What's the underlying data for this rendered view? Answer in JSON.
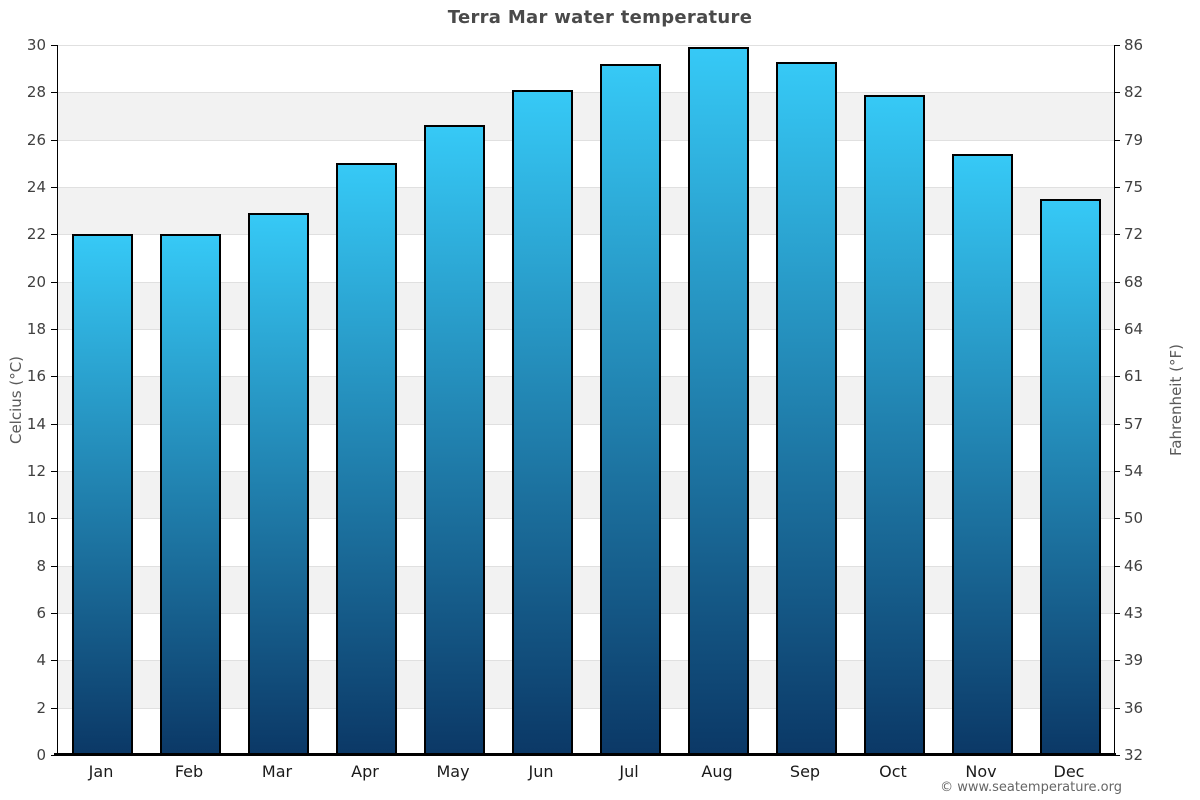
{
  "title": "Terra Mar water temperature",
  "footer": {
    "copyright": "© www.seatemperature.org"
  },
  "axes": {
    "left_label": "Celcius (°C)",
    "right_label": "Fahrenheit (°F)",
    "celsius_ticks": [
      0,
      2,
      4,
      6,
      8,
      10,
      12,
      14,
      16,
      18,
      20,
      22,
      24,
      26,
      28,
      30
    ],
    "fahrenheit_ticks": [
      32,
      36,
      39,
      43,
      46,
      50,
      54,
      57,
      61,
      64,
      68,
      72,
      75,
      79,
      82,
      86
    ]
  },
  "chart_data": {
    "type": "bar",
    "title": "Terra Mar water temperature",
    "categories": [
      "Jan",
      "Feb",
      "Mar",
      "Apr",
      "May",
      "Jun",
      "Jul",
      "Aug",
      "Sep",
      "Oct",
      "Nov",
      "Dec"
    ],
    "values": [
      22.0,
      22.0,
      22.9,
      25.0,
      26.6,
      28.1,
      29.2,
      29.9,
      29.3,
      27.9,
      25.4,
      23.5
    ],
    "xlabel": "",
    "ylabel_left": "Celcius (°C)",
    "ylabel_right": "Fahrenheit (°F)",
    "ylim": [
      0,
      30
    ],
    "grid": true,
    "legend": "none",
    "colors": {
      "bar_gradient_top": "#36c9f6",
      "bar_gradient_bottom": "#0b3866",
      "bar_border": "#000000",
      "band_light": "#ffffff",
      "band_shaded": "#f2f2f2",
      "gridline": "#e0e0e0",
      "title_text": "#4a4a4a",
      "tick_text": "#404040",
      "month_text": "#1a1a1a",
      "axis_title_text": "#595959",
      "footer_text": "#666666"
    }
  }
}
